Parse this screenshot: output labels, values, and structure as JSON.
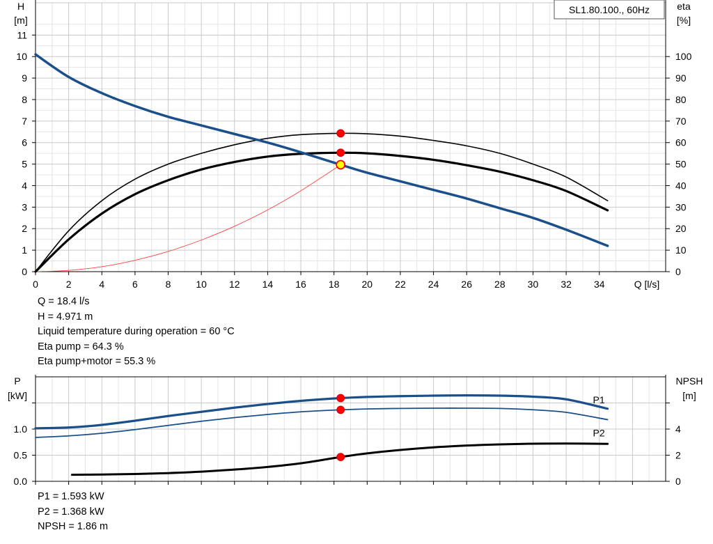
{
  "chart_data": [
    {
      "type": "line",
      "title": "SL1.80.100., 60Hz",
      "xlabel": "Q [l/s]",
      "ylabel_left": [
        "H",
        "[m]"
      ],
      "ylabel_right": [
        "eta",
        "[%]"
      ],
      "xlim": [
        0,
        38
      ],
      "ylim": [
        0,
        12.5
      ],
      "ylim_right": [
        0,
        125
      ],
      "xticks": [
        0,
        2,
        4,
        6,
        8,
        10,
        12,
        14,
        16,
        18,
        20,
        22,
        24,
        26,
        28,
        30,
        32,
        34
      ],
      "yticks_left": [
        0,
        1,
        2,
        3,
        4,
        5,
        6,
        7,
        8,
        9,
        10,
        11
      ],
      "yticks_right": [
        0,
        10,
        20,
        30,
        40,
        50,
        60,
        70,
        80,
        90,
        100
      ],
      "grid": true,
      "colors": {
        "head": "#1a4f8a",
        "eta": "#000000",
        "system": "#ff4040",
        "marker": "#ff0000",
        "op_point": "#ffff00"
      },
      "series": [
        {
          "key": "head",
          "axis": "left",
          "x": [
            0,
            2,
            4,
            6,
            8,
            10,
            12,
            14,
            16,
            18.4,
            20,
            22,
            24,
            26,
            28,
            30,
            32,
            34.5
          ],
          "y": [
            10.1,
            9.05,
            8.3,
            7.7,
            7.2,
            6.8,
            6.4,
            6.0,
            5.55,
            4.971,
            4.6,
            4.2,
            3.8,
            3.4,
            2.95,
            2.5,
            1.95,
            1.2
          ]
        },
        {
          "key": "eta_pump",
          "axis": "right",
          "x": [
            0,
            2,
            4,
            6,
            8,
            10,
            12,
            14,
            16,
            18.4,
            20,
            22,
            24,
            26,
            28,
            30,
            32,
            34.5
          ],
          "y": [
            0,
            19,
            33,
            43,
            50,
            55,
            59,
            62,
            63.7,
            64.3,
            64.1,
            63,
            61,
            58.5,
            55,
            50,
            44,
            33
          ]
        },
        {
          "key": "eta_pump_motor",
          "axis": "right",
          "x": [
            0,
            2,
            4,
            6,
            8,
            10,
            12,
            14,
            16,
            18.4,
            20,
            22,
            24,
            26,
            28,
            30,
            32,
            34.5
          ],
          "y": [
            0,
            15,
            27,
            36,
            42.5,
            47.5,
            51,
            53.5,
            54.8,
            55.3,
            55,
            53.8,
            52,
            49.5,
            46.5,
            42.5,
            37.5,
            28.5
          ]
        },
        {
          "key": "system",
          "axis": "left",
          "x": [
            0,
            2,
            4,
            6,
            8,
            10,
            12,
            14,
            16,
            18.4
          ],
          "y": [
            0,
            0.06,
            0.23,
            0.53,
            0.94,
            1.47,
            2.11,
            2.87,
            3.76,
            4.971
          ]
        }
      ],
      "points": [
        {
          "x": 18.4,
          "y": 64.3,
          "axis": "right",
          "kind": "marker"
        },
        {
          "x": 18.4,
          "y": 55.3,
          "axis": "right",
          "kind": "marker"
        },
        {
          "x": 18.4,
          "y": 4.971,
          "axis": "left",
          "kind": "op_point"
        }
      ]
    },
    {
      "type": "line",
      "ylabel_left": [
        "P",
        "[kW]"
      ],
      "ylabel_right": [
        "NPSH",
        "[m]"
      ],
      "xlim": [
        0,
        38
      ],
      "ylim": [
        0,
        2.0
      ],
      "ylim_right": [
        0,
        8
      ],
      "yticks_left": [
        {
          "value": 0.0,
          "label": "0.0"
        },
        {
          "value": 0.5,
          "label": "0.5"
        },
        {
          "value": 1.0,
          "label": "1.0"
        },
        {
          "value": 1.5,
          "label": ""
        }
      ],
      "yticks_right": [
        {
          "value": 0,
          "label": "0"
        },
        {
          "value": 2,
          "label": "2"
        },
        {
          "value": 4,
          "label": "4"
        },
        {
          "value": 6,
          "label": ""
        }
      ],
      "grid": true,
      "colors": {
        "p1": "#1a4f8a",
        "p2": "#1a4f8a",
        "npsh": "#000000",
        "marker": "#ff0000"
      },
      "series": [
        {
          "key": "p1",
          "name": "P1",
          "axis": "left",
          "x": [
            0,
            2,
            4,
            6,
            8,
            10,
            12,
            14,
            16,
            18.4,
            20,
            22,
            24,
            26,
            28,
            30,
            32,
            34.5
          ],
          "y": [
            1.015,
            1.03,
            1.08,
            1.16,
            1.25,
            1.33,
            1.41,
            1.48,
            1.54,
            1.593,
            1.615,
            1.63,
            1.64,
            1.645,
            1.64,
            1.62,
            1.57,
            1.39
          ]
        },
        {
          "key": "p2",
          "name": "P2",
          "axis": "left",
          "x": [
            0,
            2,
            4,
            6,
            8,
            10,
            12,
            14,
            16,
            18.4,
            20,
            22,
            24,
            26,
            28,
            30,
            32,
            34.5
          ],
          "y": [
            0.84,
            0.87,
            0.92,
            0.99,
            1.07,
            1.15,
            1.22,
            1.28,
            1.33,
            1.368,
            1.385,
            1.395,
            1.4,
            1.4,
            1.395,
            1.37,
            1.32,
            1.18
          ]
        },
        {
          "key": "npsh",
          "axis": "right",
          "x": [
            2.2,
            4,
            6,
            8,
            10,
            12,
            14,
            16,
            18.4,
            20,
            22,
            24,
            26,
            28,
            30,
            32,
            34.5
          ],
          "y": [
            0.5,
            0.52,
            0.56,
            0.63,
            0.74,
            0.9,
            1.1,
            1.38,
            1.86,
            2.14,
            2.4,
            2.6,
            2.74,
            2.83,
            2.88,
            2.89,
            2.87
          ]
        }
      ],
      "points": [
        {
          "x": 18.4,
          "y": 1.593,
          "axis": "left",
          "kind": "marker"
        },
        {
          "x": 18.4,
          "y": 1.368,
          "axis": "left",
          "kind": "marker"
        },
        {
          "x": 18.4,
          "y": 1.86,
          "axis": "right",
          "kind": "marker"
        }
      ]
    }
  ],
  "info_top": [
    "Q = 18.4 l/s",
    "H = 4.971 m",
    "Liquid temperature during operation = 60 °C",
    "Eta pump = 64.3 %",
    "Eta pump+motor = 55.3 %"
  ],
  "info_bottom": [
    "P1 = 1.593 kW",
    "P2 = 1.368 kW",
    "NPSH = 1.86 m"
  ]
}
